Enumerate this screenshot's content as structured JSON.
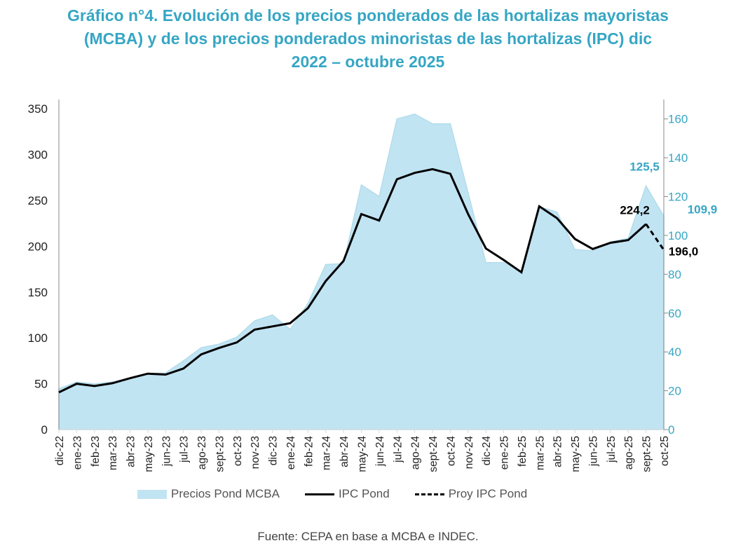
{
  "title_lines": [
    "Gráfico n°4. Evolución de los precios ponderados de las hortalizas mayoristas",
    "(MCBA) y de los precios ponderados minoristas de las hortalizas (IPC) dic",
    "2022 – octubre 2025"
  ],
  "source": "Fuente: CEPA en base a MCBA e INDEC.",
  "colors": {
    "title": "#36A6C4",
    "area_fill": "#C1E4F3",
    "area_stroke": "#B3DCEB",
    "right_axis": "#36A6C4",
    "ipc_line": "#000000"
  },
  "chart_data": {
    "type": "area+line",
    "title": "Evolución de los precios ponderados de las hortalizas mayoristas (MCBA) y de los precios ponderados minoristas de las hortalizas (IPC) dic 2022 – octubre 2025",
    "categories": [
      "dic-22",
      "ene-23",
      "feb-23",
      "mar-23",
      "abr-23",
      "may-23",
      "jun-23",
      "jul-23",
      "ago-23",
      "sept-23",
      "oct-23",
      "nov-23",
      "dic-23",
      "ene-24",
      "feb-24",
      "mar-24",
      "abr-24",
      "may-24",
      "jun-24",
      "jul-24",
      "ago-24",
      "sept-24",
      "oct-24",
      "nov-24",
      "dic-24",
      "ene-25",
      "feb-25",
      "mar-25",
      "abr-25",
      "may-25",
      "jun-25",
      "jul-25",
      "ago-25",
      "sept-25",
      "oct-25"
    ],
    "left_axis": {
      "label": "",
      "range": [
        0,
        360
      ],
      "ticks": [
        0,
        50,
        100,
        150,
        200,
        250,
        300,
        350
      ]
    },
    "right_axis": {
      "label": "",
      "range": [
        0,
        170
      ],
      "ticks": [
        0,
        20,
        40,
        60,
        80,
        100,
        120,
        140,
        160
      ]
    },
    "series": [
      {
        "name": "Precios Pond MCBA",
        "type": "area",
        "axis": "right",
        "values": [
          21.0,
          24.5,
          23.5,
          24.5,
          26.4,
          28.9,
          29.2,
          35.4,
          42.2,
          44.0,
          47.6,
          56.0,
          59.0,
          51.6,
          65.0,
          85.0,
          85.5,
          126.0,
          120.0,
          160.0,
          162.5,
          157.5,
          157.5,
          122.0,
          86.0,
          86.0,
          81.5,
          114.8,
          112.0,
          92.8,
          92.0,
          96.7,
          98.5,
          125.5,
          109.9
        ]
      },
      {
        "name": "IPC Pond",
        "type": "line",
        "axis": "left",
        "values": [
          40.6,
          50.0,
          47.5,
          50.5,
          56.0,
          61.0,
          60.0,
          66.6,
          82.0,
          89.0,
          95.0,
          109.0,
          112.5,
          116.0,
          132.5,
          162.0,
          184.0,
          235.0,
          228.0,
          273.0,
          280.0,
          284.0,
          279.0,
          235.0,
          197.5,
          185.0,
          171.5,
          243.5,
          230.5,
          208.0,
          197.0,
          203.7,
          206.7,
          224.2,
          null
        ]
      },
      {
        "name": "Proy IPC Pond",
        "type": "line-dashed",
        "axis": "left",
        "values": [
          null,
          null,
          null,
          null,
          null,
          null,
          null,
          null,
          null,
          null,
          null,
          null,
          null,
          null,
          null,
          null,
          null,
          null,
          null,
          null,
          null,
          null,
          null,
          null,
          null,
          null,
          null,
          null,
          null,
          null,
          null,
          null,
          null,
          224.2,
          196.0
        ]
      }
    ],
    "annotations": [
      {
        "text": "125,5",
        "series": "Precios Pond MCBA",
        "category": "sept-25",
        "color": "#36A6C4"
      },
      {
        "text": "109,9",
        "series": "Precios Pond MCBA",
        "category": "oct-25",
        "color": "#36A6C4"
      },
      {
        "text": "224,2",
        "series": "IPC Pond",
        "category": "sept-25",
        "color": "#000000"
      },
      {
        "text": "196,0",
        "series": "Proy IPC Pond",
        "category": "oct-25",
        "color": "#000000"
      }
    ],
    "legend": {
      "position": "bottom",
      "items": [
        "Precios Pond MCBA",
        "IPC Pond",
        "Proy IPC Pond"
      ]
    },
    "grid": false
  }
}
